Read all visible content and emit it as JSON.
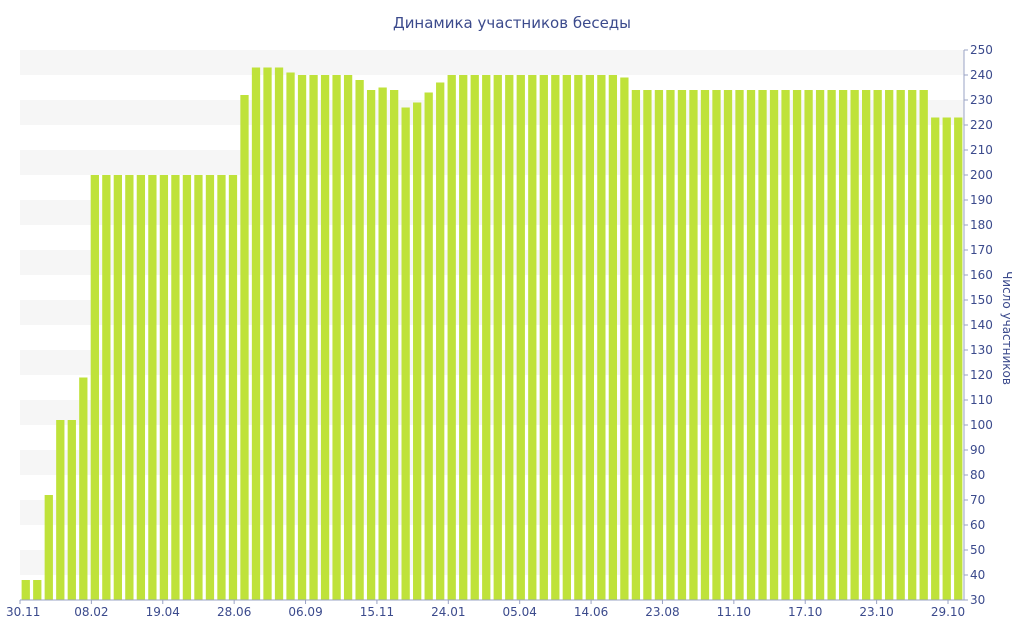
{
  "chart_data": {
    "type": "bar",
    "title": "Динамика участников беседы",
    "xlabel": "",
    "ylabel": "Число участников",
    "ylim": [
      30,
      250
    ],
    "ytick_step": 10,
    "grid": "alternating horizontal bands",
    "y_axis_side": "right",
    "x_tick_labels": [
      "30.11",
      "08.02",
      "19.04",
      "28.06",
      "06.09",
      "15.11",
      "24.01",
      "05.04",
      "14.06",
      "23.08",
      "11.10",
      "17.10",
      "23.10",
      "29.10"
    ],
    "series": [
      {
        "values": [
          38,
          38,
          72,
          102,
          102,
          119,
          200,
          200,
          200,
          200,
          200,
          200,
          200,
          200,
          200,
          200,
          200,
          200,
          200,
          232,
          243,
          243,
          243,
          241,
          240,
          240,
          240,
          240,
          240,
          238,
          234,
          235,
          234,
          227,
          229,
          233,
          237,
          240,
          240,
          240,
          240,
          240,
          240,
          240,
          240,
          240,
          240,
          240,
          240,
          240,
          240,
          240,
          239,
          234,
          234,
          234,
          234,
          234,
          234,
          234,
          234,
          234,
          234,
          234,
          234,
          234,
          234,
          234,
          234,
          234,
          234,
          234,
          234,
          234,
          234,
          234,
          234,
          234,
          234,
          223,
          223,
          223
        ]
      }
    ],
    "colors": {
      "bar": "#bfe23a",
      "band": "#f6f6f6",
      "text": "#3b4a8c",
      "axis": "#9aa3c4"
    }
  }
}
